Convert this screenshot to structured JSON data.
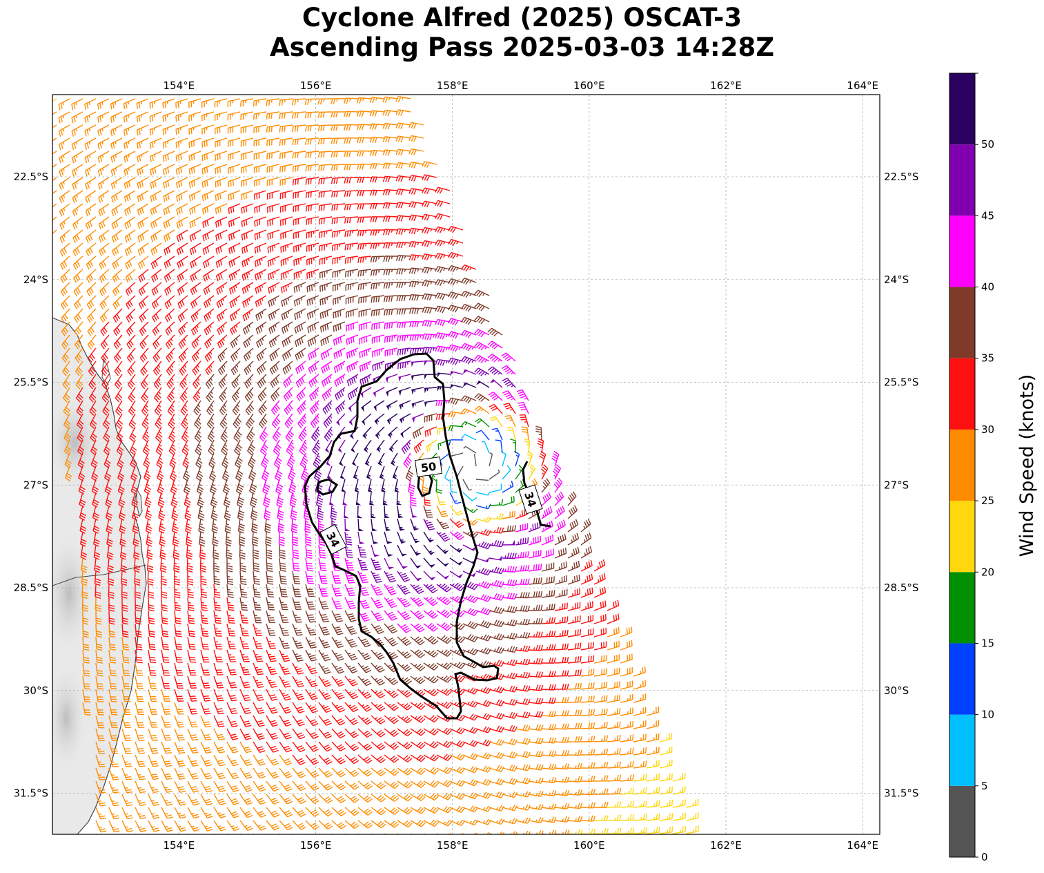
{
  "title": {
    "line1": "Cyclone Alfred (2025) OSCAT-3",
    "line2": "Ascending Pass 2025-03-03 14:28Z"
  },
  "map": {
    "lon_range": [
      152.15,
      164.25
    ],
    "lat_range": [
      -32.1,
      -21.3
    ],
    "lon_ticks": [
      "154°E",
      "156°E",
      "158°E",
      "160°E",
      "162°E",
      "164°E"
    ],
    "lat_ticks": [
      "22.5°S",
      "24°S",
      "25.5°S",
      "27°S",
      "28.5°S",
      "30°S",
      "31.5°S"
    ],
    "gridlines": true,
    "coastline_color": "#444444",
    "land_shading": "light gray terrain relief",
    "contour_labels": [
      "34",
      "50",
      "34"
    ]
  },
  "colorbar": {
    "label": "Wind Speed (knots)",
    "ticks": [
      "0",
      "5",
      "10",
      "15",
      "20",
      "25",
      "30",
      "35",
      "40",
      "45",
      "50"
    ],
    "bins": [
      {
        "min": 0,
        "max": 5,
        "color": "#555555"
      },
      {
        "min": 5,
        "max": 10,
        "color": "#00bfff"
      },
      {
        "min": 10,
        "max": 15,
        "color": "#0040ff"
      },
      {
        "min": 15,
        "max": 20,
        "color": "#009000"
      },
      {
        "min": 20,
        "max": 25,
        "color": "#ffd70f"
      },
      {
        "min": 25,
        "max": 30,
        "color": "#ff8c00"
      },
      {
        "min": 30,
        "max": 35,
        "color": "#ff1010"
      },
      {
        "min": 35,
        "max": 40,
        "color": "#7f3a2a"
      },
      {
        "min": 40,
        "max": 45,
        "color": "#ff00ff"
      },
      {
        "min": 45,
        "max": 50,
        "color": "#8000b0"
      },
      {
        "min": 50,
        "max": 55,
        "color": "#2a0060"
      }
    ]
  },
  "storm": {
    "center_lon": 158.3,
    "center_lat": -26.75,
    "max_wind_kt": 52
  }
}
